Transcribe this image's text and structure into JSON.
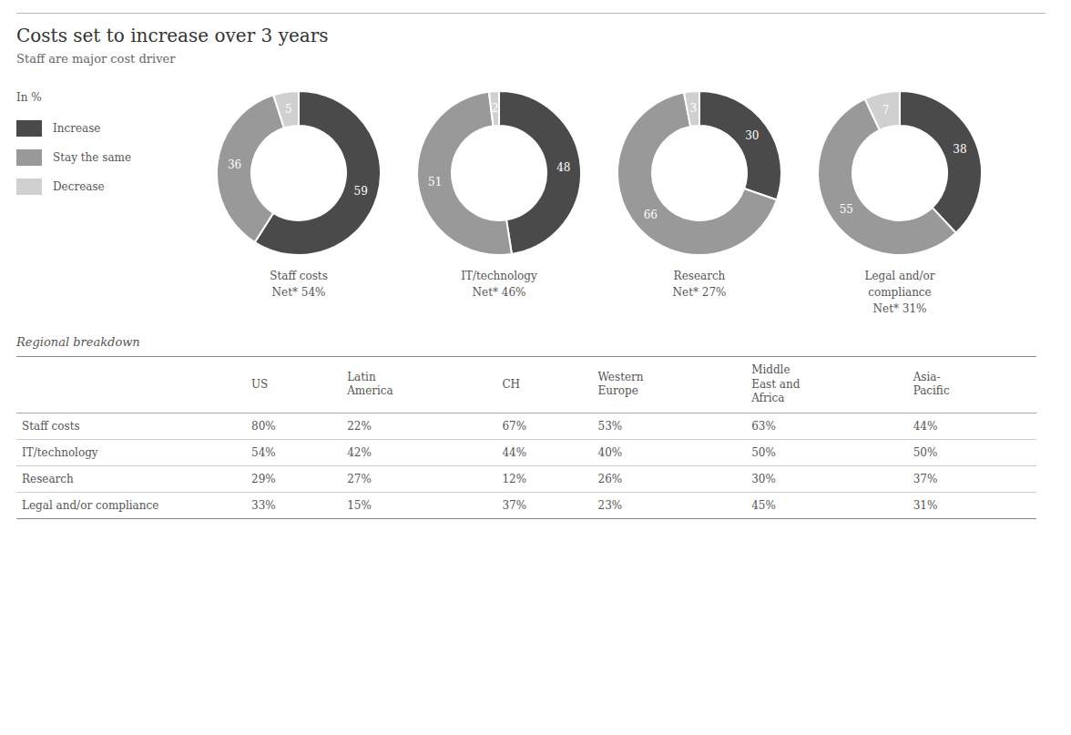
{
  "title": "Costs set to increase over 3 years",
  "subtitle": "Staff are major cost driver",
  "legend_title": "In %",
  "chart_data": [
    {
      "type": "donut",
      "title": "Staff costs\nNet* 54%",
      "categories": [
        "Increase",
        "Stay the same",
        "Decrease"
      ],
      "values": [
        59,
        36,
        5
      ],
      "colors": [
        "#4a4a4a",
        "#999999",
        "#d0d0d0"
      ],
      "data_labels": true
    },
    {
      "type": "donut",
      "title": "IT/technology\nNet* 46%",
      "categories": [
        "Increase",
        "Stay the same",
        "Decrease"
      ],
      "values": [
        48,
        51,
        2
      ],
      "colors": [
        "#4a4a4a",
        "#999999",
        "#d0d0d0"
      ],
      "data_labels": true
    },
    {
      "type": "donut",
      "title": "Research\nNet* 27%",
      "categories": [
        "Increase",
        "Stay the same",
        "Decrease"
      ],
      "values": [
        30,
        66,
        3
      ],
      "colors": [
        "#4a4a4a",
        "#999999",
        "#d0d0d0"
      ],
      "data_labels": true
    },
    {
      "type": "donut",
      "title": "Legal and/or\ncompliance\nNet* 31%",
      "categories": [
        "Increase",
        "Stay the same",
        "Decrease"
      ],
      "values": [
        38,
        55,
        7
      ],
      "colors": [
        "#4a4a4a",
        "#999999",
        "#d0d0d0"
      ],
      "data_labels": true
    },
    {
      "type": "table",
      "title": "Regional breakdown",
      "columns": [
        "US",
        "Latin\nAmerica",
        "CH",
        "Western\nEurope",
        "Middle\nEast and\nAfrica",
        "Asia-\nPacific"
      ],
      "rows": [
        {
          "name": "Staff costs",
          "values": [
            80,
            22,
            67,
            53,
            63,
            44
          ],
          "value_labels": [
            "80%",
            "22%",
            "67%",
            "53%",
            "63%",
            "44%"
          ]
        },
        {
          "name": "IT/technology",
          "values": [
            54,
            42,
            44,
            40,
            50,
            50
          ],
          "value_labels": [
            "54%",
            "42%",
            "44%",
            "40%",
            "50%",
            "50%"
          ]
        },
        {
          "name": "Research",
          "values": [
            29,
            27,
            12,
            26,
            30,
            37
          ],
          "value_labels": [
            "29%",
            "27%",
            "12%",
            "26%",
            "30%",
            "37%"
          ]
        },
        {
          "name": "Legal and/or compliance",
          "values": [
            33,
            15,
            37,
            23,
            45,
            31
          ],
          "value_labels": [
            "33%",
            "15%",
            "37%",
            "23%",
            "45%",
            "31%"
          ]
        }
      ]
    }
  ]
}
